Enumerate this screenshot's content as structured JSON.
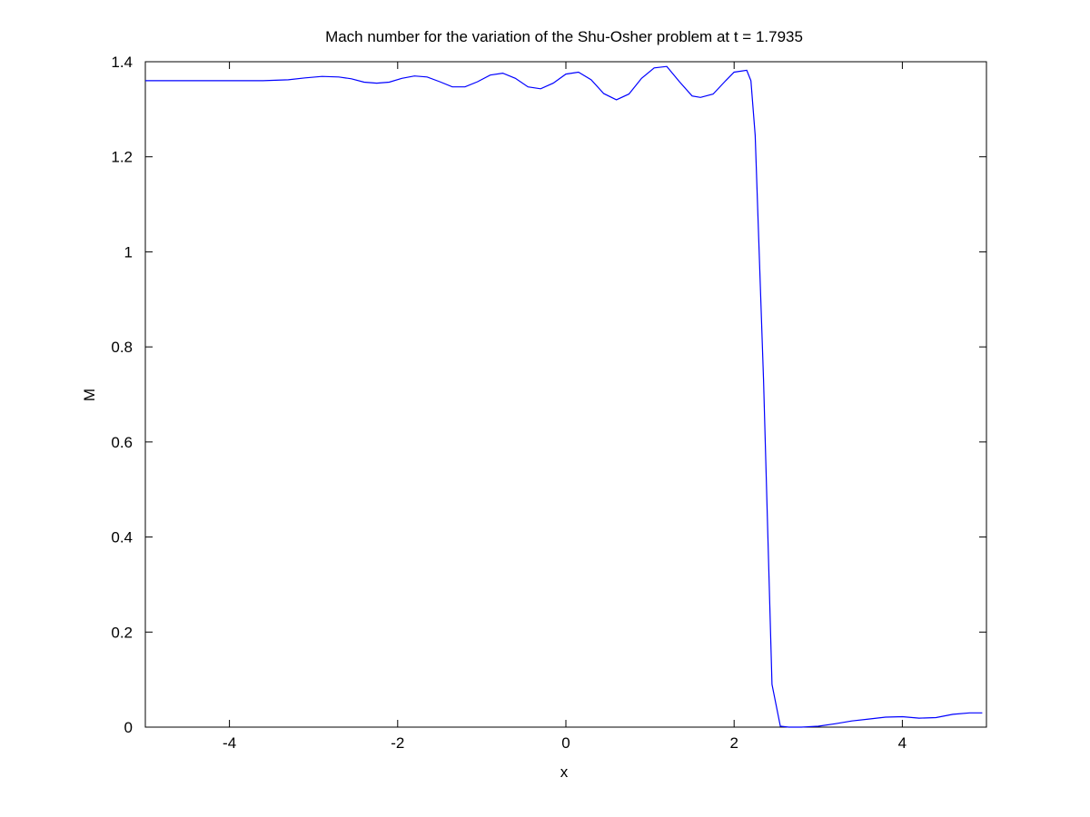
{
  "chart_data": {
    "type": "line",
    "title": "Mach number for the variation of the Shu-Osher problem at t = 1.7935",
    "xlabel": "x",
    "ylabel": "M",
    "xlim": [
      -5,
      5
    ],
    "ylim": [
      0,
      1.4
    ],
    "xticks": [
      -4,
      -2,
      0,
      2,
      4
    ],
    "xtick_labels": [
      "-4",
      "-2",
      "0",
      "2",
      "4"
    ],
    "yticks": [
      0,
      0.2,
      0.4,
      0.6,
      0.8,
      1,
      1.2,
      1.4
    ],
    "ytick_labels": [
      "0",
      "0.2",
      "0.4",
      "0.6",
      "0.8",
      "1",
      "1.2",
      "1.4"
    ],
    "grid": false,
    "series": [
      {
        "color": "#0000ff",
        "x": [
          -5.0,
          -3.6,
          -3.3,
          -3.1,
          -2.9,
          -2.7,
          -2.55,
          -2.4,
          -2.25,
          -2.1,
          -1.95,
          -1.8,
          -1.65,
          -1.5,
          -1.35,
          -1.2,
          -1.05,
          -0.9,
          -0.75,
          -0.6,
          -0.45,
          -0.3,
          -0.15,
          0.0,
          0.15,
          0.3,
          0.45,
          0.6,
          0.75,
          0.9,
          1.05,
          1.2,
          1.35,
          1.5,
          1.6,
          1.75,
          1.9,
          2.0,
          2.15,
          2.2,
          2.25,
          2.35,
          2.45,
          2.55,
          2.65,
          2.8,
          3.0,
          3.2,
          3.4,
          3.6,
          3.8,
          4.0,
          4.2,
          4.4,
          4.6,
          4.8,
          4.95
        ],
        "y": [
          1.36,
          1.36,
          1.362,
          1.366,
          1.369,
          1.368,
          1.364,
          1.357,
          1.355,
          1.357,
          1.365,
          1.37,
          1.368,
          1.358,
          1.347,
          1.347,
          1.358,
          1.372,
          1.376,
          1.365,
          1.347,
          1.343,
          1.355,
          1.374,
          1.378,
          1.362,
          1.333,
          1.32,
          1.332,
          1.365,
          1.387,
          1.39,
          1.358,
          1.328,
          1.325,
          1.332,
          1.36,
          1.378,
          1.382,
          1.36,
          1.245,
          0.73,
          0.09,
          0.002,
          0.0,
          0.0,
          0.002,
          0.007,
          0.013,
          0.017,
          0.021,
          0.022,
          0.019,
          0.02,
          0.027,
          0.03,
          0.03
        ]
      }
    ]
  }
}
